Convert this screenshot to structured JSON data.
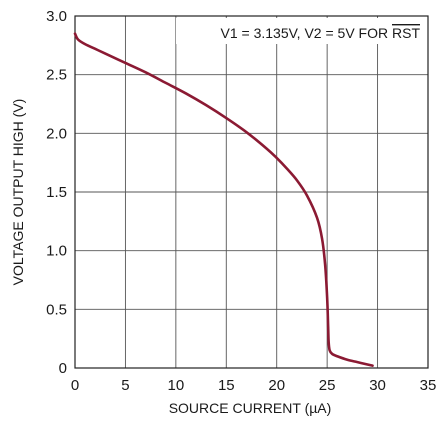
{
  "chart_data": {
    "type": "line",
    "title": "",
    "xlabel": "SOURCE CURRENT (µA)",
    "ylabel": "VOLTAGE OUTPUT HIGH (V)",
    "xlim": [
      0,
      35
    ],
    "ylim": [
      0,
      3.0
    ],
    "xticks": [
      "0",
      "5",
      "10",
      "15",
      "20",
      "25",
      "30",
      "35"
    ],
    "yticks": [
      "0",
      "0.5",
      "1.0",
      "1.5",
      "2.0",
      "2.5",
      "3.0"
    ],
    "grid": true,
    "annotation": {
      "prefix": "V1 = 3.135V, V2 = 5V FOR ",
      "overlined": "RST"
    },
    "series": [
      {
        "color": "#8b1a33",
        "x": [
          0,
          0.3,
          1,
          2,
          3,
          5,
          7,
          9,
          11,
          13,
          15,
          17,
          19,
          20,
          21,
          22,
          23,
          24,
          24.5,
          24.8,
          25.0,
          25.1,
          25.15,
          25.25,
          25.5,
          26,
          27,
          28,
          29,
          29.5
        ],
        "y": [
          2.85,
          2.8,
          2.76,
          2.72,
          2.68,
          2.6,
          2.52,
          2.43,
          2.34,
          2.24,
          2.13,
          2.01,
          1.87,
          1.79,
          1.7,
          1.6,
          1.47,
          1.28,
          1.1,
          0.88,
          0.6,
          0.35,
          0.22,
          0.15,
          0.12,
          0.1,
          0.07,
          0.05,
          0.03,
          0.02
        ]
      }
    ]
  }
}
